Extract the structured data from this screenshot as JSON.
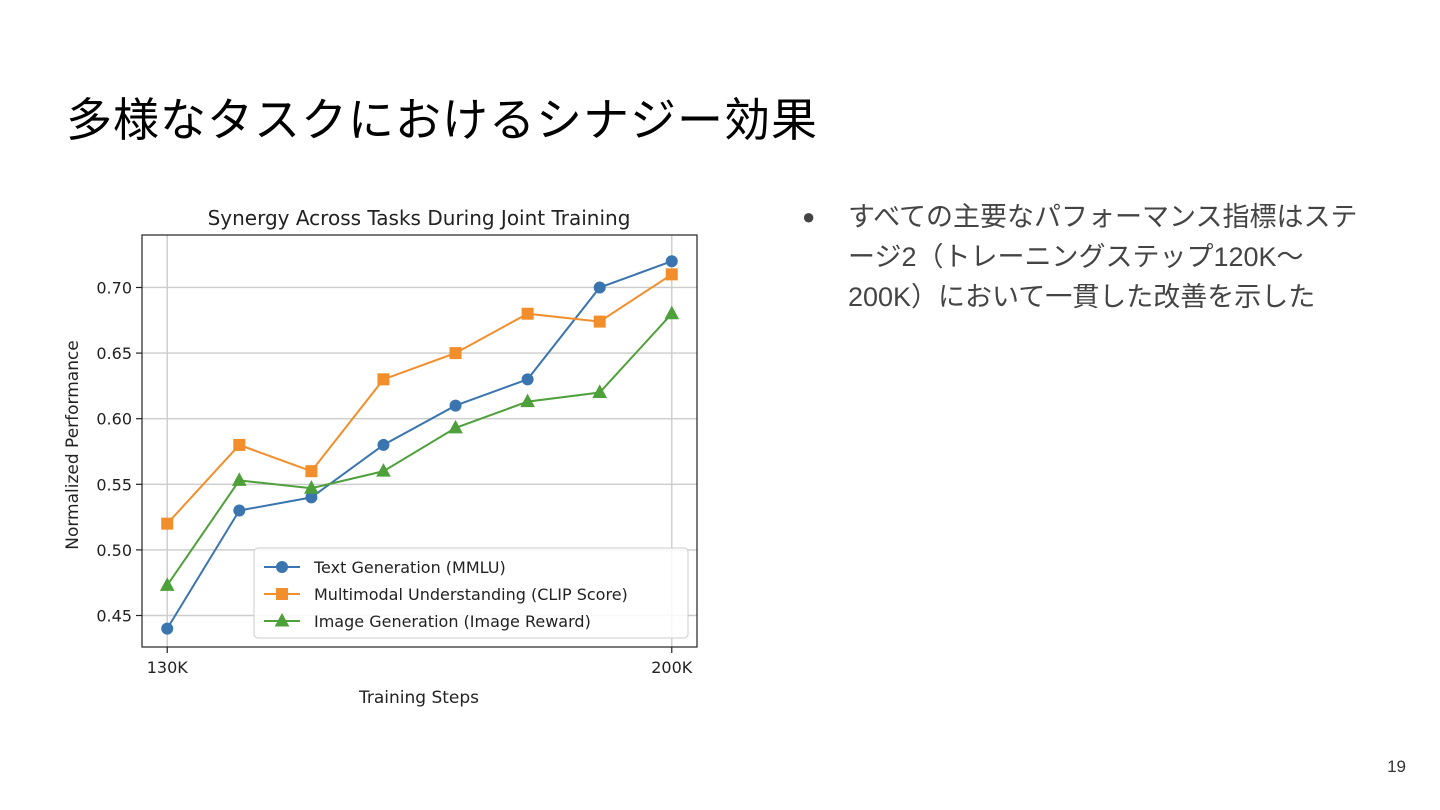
{
  "slide": {
    "title": "多様なタスクにおけるシナジー効果",
    "bullets": [
      "すべての主要なパフォーマンス指標はステージ2（トレーニングステップ120K〜200K）において一貫した改善を示した"
    ],
    "page_number": "19"
  },
  "chart_data": {
    "type": "line",
    "title": "Synergy Across Tasks During Joint Training",
    "xlabel": "Training Steps",
    "ylabel": "Normalized Performance",
    "x": [
      130,
      140,
      150,
      160,
      170,
      180,
      190,
      200
    ],
    "x_unit": "K",
    "xticks": [
      130,
      200
    ],
    "xtick_labels": [
      "130K",
      "200K"
    ],
    "xlim": [
      126.5,
      203.5
    ],
    "ylim": [
      0.426,
      0.74
    ],
    "yticks": [
      0.45,
      0.5,
      0.55,
      0.6,
      0.65,
      0.7
    ],
    "ytick_labels": [
      "0.45",
      "0.50",
      "0.55",
      "0.60",
      "0.65",
      "0.70"
    ],
    "grid": true,
    "legend_position": "lower-right",
    "series": [
      {
        "name": "Text Generation (MMLU)",
        "marker": "circle",
        "color": "#3a75b0",
        "values": [
          0.44,
          0.53,
          0.54,
          0.58,
          0.61,
          0.63,
          0.7,
          0.72
        ]
      },
      {
        "name": "Multimodal Understanding (CLIP Score)",
        "marker": "square",
        "color": "#f28e2b",
        "values": [
          0.52,
          0.58,
          0.56,
          0.63,
          0.65,
          0.68,
          0.674,
          0.71
        ]
      },
      {
        "name": "Image Generation (Image Reward)",
        "marker": "triangle",
        "color": "#4ea03a",
        "values": [
          0.473,
          0.553,
          0.547,
          0.56,
          0.593,
          0.613,
          0.62,
          0.68
        ]
      }
    ]
  }
}
